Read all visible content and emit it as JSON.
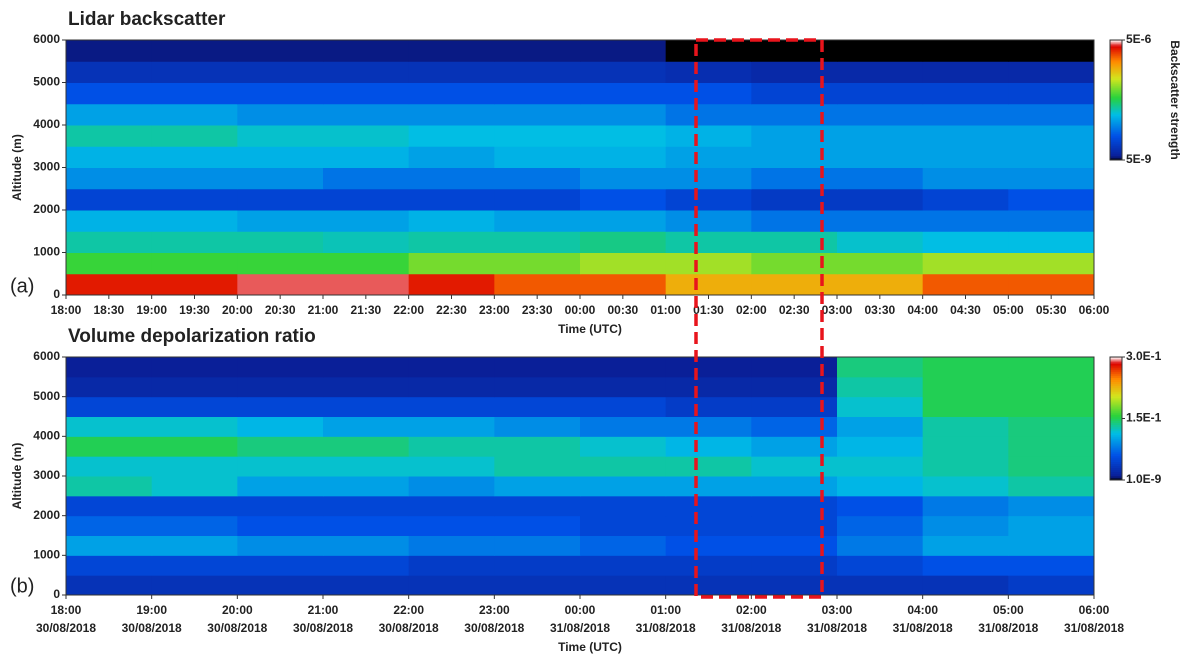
{
  "chart_data": [
    {
      "type": "heatmap",
      "title": "Lidar backscatter",
      "panel_label": "(a)",
      "xlabel": "Time (UTC)",
      "ylabel": "Altitude (m)",
      "colorbar_label": "Backscatter strength",
      "ylim": [
        0,
        6000
      ],
      "yticks": [
        0,
        1000,
        2000,
        3000,
        4000,
        5000,
        6000
      ],
      "xtick_labels": [
        {
          "time": "18:00"
        },
        {
          "time": "18:30"
        },
        {
          "time": "19:00"
        },
        {
          "time": "19:30"
        },
        {
          "time": "20:00"
        },
        {
          "time": "20:30"
        },
        {
          "time": "21:00"
        },
        {
          "time": "21:30"
        },
        {
          "time": "22:00"
        },
        {
          "time": "22:30"
        },
        {
          "time": "23:00"
        },
        {
          "time": "23:30"
        },
        {
          "time": "00:00"
        },
        {
          "time": "00:30"
        },
        {
          "time": "01:00"
        },
        {
          "time": "01:30"
        },
        {
          "time": "02:00"
        },
        {
          "time": "02:30"
        },
        {
          "time": "03:00"
        },
        {
          "time": "03:30"
        },
        {
          "time": "04:00"
        },
        {
          "time": "04:30"
        },
        {
          "time": "05:00"
        },
        {
          "time": "05:30"
        },
        {
          "time": "06:00"
        }
      ],
      "log_color": true,
      "clim": [
        5e-09,
        5e-06
      ],
      "cticks": [
        {
          "value": 5e-06,
          "label": "5E-6"
        },
        {
          "value": 5e-09,
          "label": "5E-9"
        }
      ],
      "values": [
        [
          3e-06,
          3e-06,
          4e-06,
          4e-06,
          3e-06,
          2e-06,
          2e-06,
          1e-06,
          1e-06,
          1e-06,
          2e-06,
          2e-06
        ],
        [
          2e-07,
          2e-07,
          2e-07,
          2e-07,
          3e-07,
          3e-07,
          4e-07,
          4e-07,
          3e-07,
          3e-07,
          4e-07,
          4e-07
        ],
        [
          1e-07,
          1e-07,
          1e-07,
          9e-08,
          1e-07,
          1e-07,
          1.2e-07,
          1e-07,
          1e-07,
          8e-08,
          7e-08,
          7e-08
        ],
        [
          6e-08,
          6e-08,
          5e-08,
          5e-08,
          6e-08,
          5e-08,
          5e-08,
          4e-08,
          3e-08,
          3e-08,
          3e-08,
          3e-08
        ],
        [
          1.5e-08,
          1.5e-08,
          1.5e-08,
          1.5e-08,
          1.5e-08,
          1.5e-08,
          2e-08,
          1.5e-08,
          1.2e-08,
          1.2e-08,
          1.5e-08,
          2e-08
        ],
        [
          4e-08,
          4e-08,
          4e-08,
          3e-08,
          3e-08,
          3e-08,
          4e-08,
          4e-08,
          3e-08,
          3e-08,
          4e-08,
          4e-08
        ],
        [
          6e-08,
          6e-08,
          6e-08,
          6e-08,
          5e-08,
          6e-08,
          6e-08,
          5e-08,
          5e-08,
          5e-08,
          5e-08,
          5e-08
        ],
        [
          1e-07,
          1e-07,
          8e-08,
          8e-08,
          7e-08,
          7e-08,
          7e-08,
          6e-08,
          5e-08,
          5e-08,
          5e-08,
          5e-08
        ],
        [
          5e-08,
          5e-08,
          4e-08,
          4e-08,
          4e-08,
          4e-08,
          4e-08,
          3e-08,
          3e-08,
          3e-08,
          3e-08,
          3e-08
        ],
        [
          2e-08,
          2e-08,
          2e-08,
          2e-08,
          2e-08,
          2e-08,
          2e-08,
          2e-08,
          1.5e-08,
          1.5e-08,
          1.5e-08,
          1.5e-08
        ],
        [
          1e-08,
          1e-08,
          1e-08,
          1e-08,
          1e-08,
          1e-08,
          1e-08,
          9e-09,
          8e-09,
          8e-09,
          8e-09,
          8e-09
        ],
        [
          6e-09,
          6e-09,
          6e-09,
          6e-09,
          6e-09,
          6e-09,
          6e-09,
          5e-09,
          5e-09,
          5e-09,
          5e-09,
          5e-09
        ]
      ]
    },
    {
      "type": "heatmap",
      "title": "Volume depolarization ratio",
      "panel_label": "(b)",
      "xlabel": "Time (UTC)",
      "ylabel": "Altitude (m)",
      "ylim": [
        0,
        6000
      ],
      "yticks": [
        0,
        1000,
        2000,
        3000,
        4000,
        5000,
        6000
      ],
      "xtick_labels": [
        {
          "time": "18:00",
          "date": "30/08/2018"
        },
        {
          "time": "19:00",
          "date": "30/08/2018"
        },
        {
          "time": "20:00",
          "date": "30/08/2018"
        },
        {
          "time": "21:00",
          "date": "30/08/2018"
        },
        {
          "time": "22:00",
          "date": "30/08/2018"
        },
        {
          "time": "23:00",
          "date": "30/08/2018"
        },
        {
          "time": "00:00",
          "date": "31/08/2018"
        },
        {
          "time": "01:00",
          "date": "31/08/2018"
        },
        {
          "time": "02:00",
          "date": "31/08/2018"
        },
        {
          "time": "03:00",
          "date": "31/08/2018"
        },
        {
          "time": "04:00",
          "date": "31/08/2018"
        },
        {
          "time": "05:00",
          "date": "31/08/2018"
        },
        {
          "time": "06:00",
          "date": "31/08/2018"
        }
      ],
      "log_color": false,
      "clim": [
        1e-09,
        0.3
      ],
      "cticks": [
        {
          "value": 0.3,
          "label": "3.0E-1"
        },
        {
          "value": 0.15,
          "label": "1.5E-1"
        },
        {
          "value": 1e-09,
          "label": "1.0E-9"
        }
      ],
      "values": [
        [
          0.03,
          0.03,
          0.03,
          0.03,
          0.03,
          0.03,
          0.03,
          0.03,
          0.03,
          0.03,
          0.03,
          0.04
        ],
        [
          0.05,
          0.05,
          0.05,
          0.05,
          0.04,
          0.04,
          0.04,
          0.04,
          0.04,
          0.05,
          0.06,
          0.06
        ],
        [
          0.1,
          0.1,
          0.09,
          0.09,
          0.08,
          0.08,
          0.07,
          0.06,
          0.06,
          0.08,
          0.1,
          0.1
        ],
        [
          0.07,
          0.07,
          0.06,
          0.06,
          0.06,
          0.06,
          0.05,
          0.05,
          0.05,
          0.07,
          0.09,
          0.1
        ],
        [
          0.05,
          0.05,
          0.05,
          0.05,
          0.05,
          0.05,
          0.05,
          0.05,
          0.05,
          0.06,
          0.08,
          0.09
        ],
        [
          0.13,
          0.12,
          0.1,
          0.1,
          0.09,
          0.1,
          0.1,
          0.1,
          0.1,
          0.11,
          0.12,
          0.13
        ],
        [
          0.12,
          0.12,
          0.12,
          0.12,
          0.12,
          0.13,
          0.13,
          0.13,
          0.12,
          0.12,
          0.13,
          0.14
        ],
        [
          0.15,
          0.15,
          0.14,
          0.14,
          0.13,
          0.13,
          0.12,
          0.11,
          0.1,
          0.11,
          0.13,
          0.14
        ],
        [
          0.12,
          0.12,
          0.11,
          0.1,
          0.1,
          0.09,
          0.08,
          0.08,
          0.07,
          0.1,
          0.13,
          0.14
        ],
        [
          0.05,
          0.05,
          0.05,
          0.05,
          0.05,
          0.05,
          0.05,
          0.04,
          0.04,
          0.12,
          0.15,
          0.15
        ],
        [
          0.02,
          0.02,
          0.02,
          0.02,
          0.02,
          0.02,
          0.02,
          0.02,
          0.02,
          0.13,
          0.15,
          0.15
        ],
        [
          0.01,
          0.01,
          0.01,
          0.01,
          0.01,
          0.01,
          0.01,
          0.01,
          0.01,
          0.14,
          0.15,
          0.15
        ]
      ]
    }
  ]
}
